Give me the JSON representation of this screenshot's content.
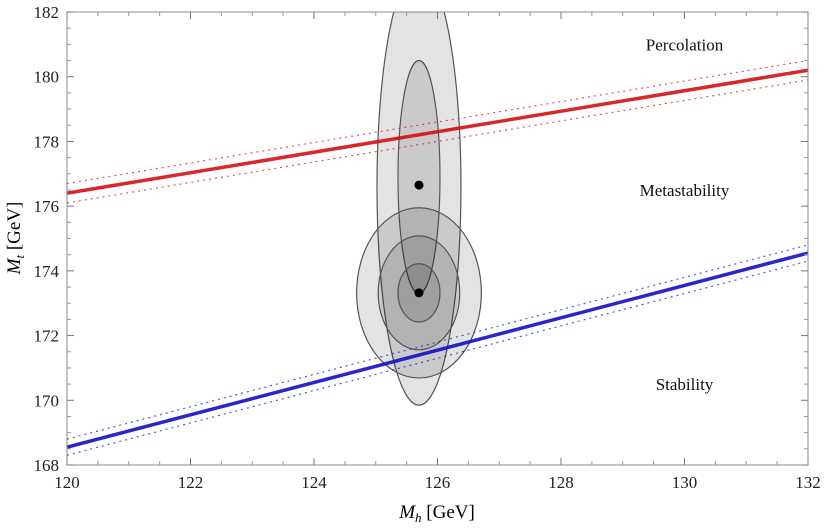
{
  "chart_data": {
    "type": "line",
    "xlabel": {
      "main": "M",
      "sub": "h",
      "unit": " [GeV]"
    },
    "ylabel": {
      "main": "M",
      "sub": "t",
      "unit": " [GeV]"
    },
    "xlim": [
      120,
      132
    ],
    "ylim": [
      168,
      182
    ],
    "xticks": [
      120,
      122,
      124,
      126,
      128,
      130,
      132
    ],
    "yticks": [
      168,
      170,
      172,
      174,
      176,
      178,
      180,
      182
    ],
    "grid": false,
    "series": [
      {
        "color": "#d41010",
        "x": [
          120,
          132
        ],
        "y": [
          176.4,
          180.2
        ],
        "band": 0.3
      },
      {
        "color": "#1010c8",
        "x": [
          120,
          132
        ],
        "y": [
          168.55,
          174.55
        ],
        "band": 0.25
      }
    ],
    "points": [
      {
        "x": 125.7,
        "y": 176.65
      },
      {
        "x": 125.7,
        "y": 173.32
      }
    ],
    "ellipses": [
      {
        "cx": 125.7,
        "cy": 176.6,
        "rx": 0.68,
        "ry": 6.75
      },
      {
        "cx": 125.7,
        "cy": 176.9,
        "rx": 0.34,
        "ry": 3.6
      },
      {
        "cx": 125.7,
        "cy": 173.32,
        "rx": 1.01,
        "ry": 2.63
      },
      {
        "cx": 125.7,
        "cy": 173.32,
        "rx": 0.66,
        "ry": 1.76
      },
      {
        "cx": 125.7,
        "cy": 173.32,
        "rx": 0.34,
        "ry": 0.9
      }
    ],
    "annotations": [
      {
        "text": "Percolation",
        "x": 130.0,
        "y": 181.0
      },
      {
        "text": "Metastability",
        "x": 130.0,
        "y": 176.5
      },
      {
        "text": "Stability",
        "x": 130.0,
        "y": 170.5
      }
    ]
  }
}
